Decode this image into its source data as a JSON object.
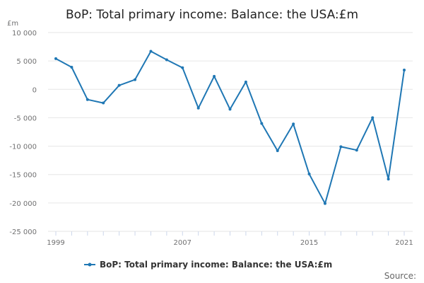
{
  "chart_data": {
    "type": "line",
    "title": "BoP: Total primary income: Balance: the USA:£m",
    "ylabel": "£m",
    "xlabel": "",
    "ylim": [
      -25000,
      10000
    ],
    "y_ticks": [
      10000,
      5000,
      0,
      -5000,
      -10000,
      -15000,
      -20000,
      -25000
    ],
    "y_tick_labels": [
      "10 000",
      "5 000",
      "0",
      "-5 000",
      "-10 000",
      "-15 000",
      "-20 000",
      "-25 000"
    ],
    "x_tick_labels": [
      "1999",
      "2007",
      "2015",
      "2021"
    ],
    "grid": true,
    "legend_position": "bottom",
    "color": "#1f77b4",
    "series": [
      {
        "name": "BoP: Total primary income: Balance: the USA:£m",
        "x": [
          1999,
          2000,
          2001,
          2002,
          2003,
          2004,
          2005,
          2006,
          2007,
          2008,
          2009,
          2010,
          2011,
          2012,
          2013,
          2014,
          2015,
          2016,
          2017,
          2018,
          2019,
          2020,
          2021
        ],
        "values": [
          5400,
          3900,
          -1800,
          -2400,
          700,
          1700,
          6700,
          5200,
          3800,
          -3300,
          2300,
          -3500,
          1300,
          -6000,
          -10800,
          -6100,
          -14900,
          -20100,
          -10100,
          -10700,
          -5000,
          -15800,
          3400
        ]
      }
    ]
  },
  "source_label": "Source:"
}
